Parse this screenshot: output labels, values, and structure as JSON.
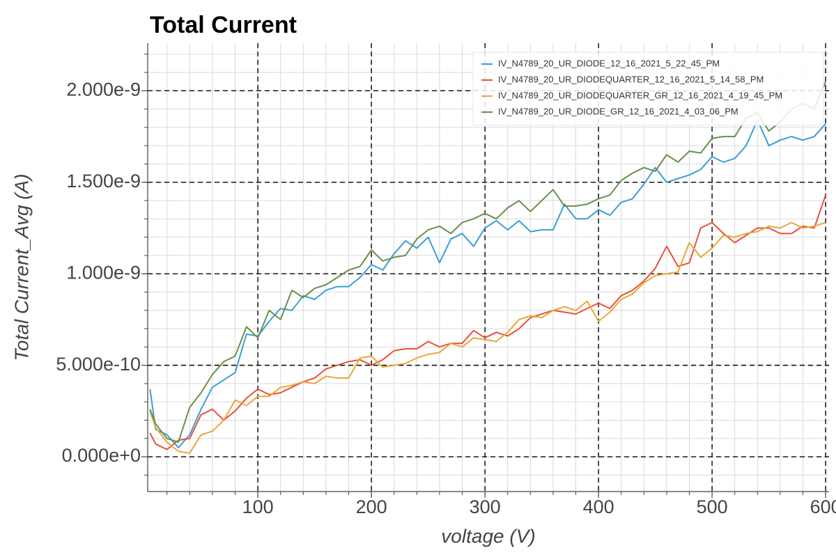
{
  "chart_data": {
    "type": "line",
    "title": "Total Current",
    "xlabel": "voltage (V)",
    "ylabel": "Total Current_Avg (A)",
    "x": [
      5,
      10,
      20,
      30,
      40,
      50,
      60,
      70,
      80,
      90,
      100,
      110,
      120,
      130,
      140,
      150,
      160,
      170,
      180,
      190,
      200,
      210,
      220,
      230,
      240,
      250,
      260,
      270,
      280,
      290,
      300,
      310,
      320,
      330,
      340,
      350,
      360,
      370,
      380,
      390,
      400,
      410,
      420,
      430,
      440,
      450,
      460,
      470,
      480,
      490,
      500,
      510,
      520,
      530,
      540,
      550,
      560,
      570,
      580,
      590,
      600
    ],
    "series": [
      {
        "name": "IV_N4789_20_UR_DIODE_12_16_2021_5_22_45_PM",
        "color": "#3a9fd5",
        "values": [
          3.7e-10,
          1.5e-10,
          1.2e-10,
          5e-11,
          1.2e-10,
          2.6e-10,
          3.8e-10,
          4.2e-10,
          4.6e-10,
          6.7e-10,
          6.6e-10,
          7.4e-10,
          8.1e-10,
          8e-10,
          8.8e-10,
          8.6e-10,
          9.1e-10,
          9.3e-10,
          9.3e-10,
          9.8e-10,
          1.05e-09,
          1.02e-09,
          1.11e-09,
          1.18e-09,
          1.14e-09,
          1.2e-09,
          1.06e-09,
          1.19e-09,
          1.22e-09,
          1.15e-09,
          1.25e-09,
          1.29e-09,
          1.24e-09,
          1.29e-09,
          1.23e-09,
          1.24e-09,
          1.24e-09,
          1.38e-09,
          1.3e-09,
          1.3e-09,
          1.35e-09,
          1.32e-09,
          1.39e-09,
          1.41e-09,
          1.49e-09,
          1.58e-09,
          1.5e-09,
          1.52e-09,
          1.54e-09,
          1.57e-09,
          1.64e-09,
          1.61e-09,
          1.63e-09,
          1.7e-09,
          1.84e-09,
          1.7e-09,
          1.73e-09,
          1.75e-09,
          1.73e-09,
          1.75e-09,
          1.82e-09
        ]
      },
      {
        "name": "IV_N4789_20_UR_DIODEQUARTER_12_16_2021_5_14_58_PM",
        "color": "#e8523a",
        "values": [
          1.3e-10,
          7e-11,
          4e-11,
          9e-11,
          1e-10,
          2.3e-10,
          2.6e-10,
          2e-10,
          2.5e-10,
          3.2e-10,
          3.7e-10,
          3.4e-10,
          3.5e-10,
          3.8e-10,
          4.1e-10,
          4.3e-10,
          4.8e-10,
          5e-10,
          5.2e-10,
          5.3e-10,
          5e-10,
          5.3e-10,
          5.8e-10,
          5.9e-10,
          5.9e-10,
          6.3e-10,
          6e-10,
          6.2e-10,
          6.2e-10,
          6.9e-10,
          6.5e-10,
          6.8e-10,
          6.6e-10,
          7e-10,
          7.6e-10,
          7.8e-10,
          8e-10,
          7.9e-10,
          7.8e-10,
          8.1e-10,
          8.4e-10,
          8.1e-10,
          8.8e-10,
          9.1e-10,
          9.6e-10,
          1.03e-09,
          1.15e-09,
          1.04e-09,
          1.06e-09,
          1.25e-09,
          1.28e-09,
          1.22e-09,
          1.17e-09,
          1.21e-09,
          1.25e-09,
          1.25e-09,
          1.22e-09,
          1.22e-09,
          1.26e-09,
          1.25e-09,
          1.43e-09
        ]
      },
      {
        "name": "IV_N4789_20_UR_DIODEQUARTER_GR_12_16_2021_4_19_45_PM",
        "color": "#e8a838",
        "values": [
          2.5e-10,
          1.6e-10,
          8e-11,
          3e-11,
          2e-11,
          1.2e-10,
          1.4e-10,
          2e-10,
          3.1e-10,
          2.8e-10,
          3.3e-10,
          3.3e-10,
          3.8e-10,
          3.9e-10,
          4.1e-10,
          4e-10,
          4.4e-10,
          4.3e-10,
          4.3e-10,
          5.4e-10,
          5.5e-10,
          4.9e-10,
          5e-10,
          5.1e-10,
          5.4e-10,
          5.6e-10,
          5.7e-10,
          6.2e-10,
          6e-10,
          6.5e-10,
          6.4e-10,
          6.3e-10,
          6.8e-10,
          7.5e-10,
          7.7e-10,
          7.6e-10,
          8e-10,
          8.2e-10,
          8e-10,
          8.5e-10,
          7.4e-10,
          7.9e-10,
          8.6e-10,
          8.9e-10,
          9.5e-10,
          9.9e-10,
          1e-09,
          1.01e-09,
          1.17e-09,
          1.09e-09,
          1.14e-09,
          1.21e-09,
          1.2e-09,
          1.22e-09,
          1.23e-09,
          1.26e-09,
          1.25e-09,
          1.28e-09,
          1.25e-09,
          1.26e-09,
          1.28e-09
        ]
      },
      {
        "name": "IV_N4789_20_UR_DIODE_GR_12_16_2021_4_03_06_PM",
        "color": "#6a8f4a",
        "values": [
          2.6e-10,
          1.8e-10,
          1e-10,
          8e-11,
          2.7e-10,
          3.5e-10,
          4.5e-10,
          5.2e-10,
          5.5e-10,
          7.1e-10,
          6.5e-10,
          8e-10,
          7.5e-10,
          9.1e-10,
          8.7e-10,
          9.2e-10,
          9.4e-10,
          9.8e-10,
          1.02e-09,
          1.04e-09,
          1.13e-09,
          1.07e-09,
          1.09e-09,
          1.1e-09,
          1.19e-09,
          1.24e-09,
          1.26e-09,
          1.22e-09,
          1.28e-09,
          1.3e-09,
          1.33e-09,
          1.3e-09,
          1.36e-09,
          1.4e-09,
          1.34e-09,
          1.4e-09,
          1.46e-09,
          1.37e-09,
          1.37e-09,
          1.38e-09,
          1.41e-09,
          1.43e-09,
          1.51e-09,
          1.55e-09,
          1.58e-09,
          1.56e-09,
          1.65e-09,
          1.61e-09,
          1.67e-09,
          1.66e-09,
          1.74e-09,
          1.75e-09,
          1.75e-09,
          1.85e-09,
          1.88e-09,
          1.78e-09,
          1.83e-09,
          1.9e-09,
          1.93e-09,
          1.9e-09,
          2.05e-09
        ]
      }
    ],
    "xlim": [
      3,
      603
    ],
    "xticks": [
      100,
      200,
      300,
      400,
      500,
      600
    ],
    "ylim": [
      -1.9e-10,
      2.26e-09
    ],
    "yticks": [
      {
        "value": 0,
        "label": "0.000e+0"
      },
      {
        "value": 5e-10,
        "label": "5.000e-10"
      },
      {
        "value": 1e-09,
        "label": "1.000e-9"
      },
      {
        "value": 1.5e-09,
        "label": "1.500e-9"
      },
      {
        "value": 2e-09,
        "label": "2.000e-9"
      }
    ],
    "grid": true,
    "minor_grid": true,
    "legend": "upper right"
  }
}
